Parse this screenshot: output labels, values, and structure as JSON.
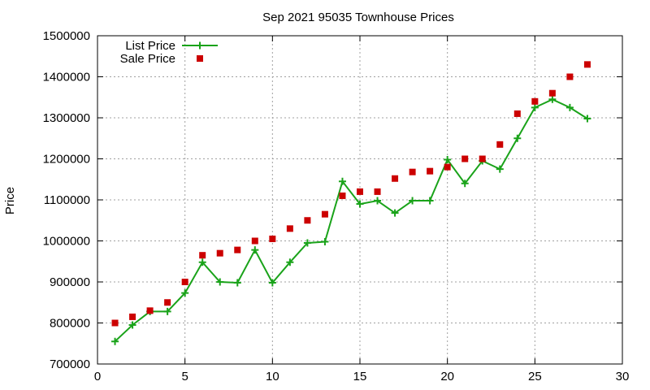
{
  "chart_data": {
    "type": "line",
    "title": "Sep 2021 95035 Townhouse Prices",
    "xlabel": "",
    "ylabel": "Price",
    "xlim": [
      0,
      30
    ],
    "ylim": [
      700000,
      1500000
    ],
    "xticks": [
      0,
      5,
      10,
      15,
      20,
      25,
      30
    ],
    "yticks": [
      700000,
      800000,
      900000,
      1000000,
      1100000,
      1200000,
      1300000,
      1400000,
      1500000
    ],
    "grid": true,
    "legend_position": "top-left",
    "series": [
      {
        "name": "List Price",
        "style": "line-with-plus-markers",
        "color": "#1aa31a",
        "x": [
          1,
          2,
          3,
          4,
          5,
          6,
          7,
          8,
          9,
          10,
          11,
          12,
          13,
          14,
          15,
          16,
          17,
          18,
          19,
          20,
          21,
          22,
          23,
          24,
          25,
          26,
          27,
          28
        ],
        "values": [
          755000,
          795000,
          828000,
          828000,
          873000,
          948000,
          900000,
          898000,
          978000,
          898000,
          948000,
          995000,
          998000,
          1145000,
          1090000,
          1098000,
          1068000,
          1098000,
          1098000,
          1198000,
          1140000,
          1195000,
          1175000,
          1250000,
          1325000,
          1345000,
          1325000,
          1298000
        ]
      },
      {
        "name": "Sale Price",
        "style": "square-markers",
        "color": "#cc0000",
        "x": [
          1,
          2,
          3,
          4,
          5,
          6,
          7,
          8,
          9,
          10,
          11,
          12,
          13,
          14,
          15,
          16,
          17,
          18,
          19,
          20,
          21,
          22,
          23,
          24,
          25,
          26,
          27,
          28
        ],
        "values": [
          800000,
          815000,
          830000,
          850000,
          900000,
          965000,
          970000,
          978000,
          1000000,
          1005000,
          1030000,
          1050000,
          1065000,
          1110000,
          1120000,
          1120000,
          1152000,
          1168000,
          1170000,
          1180000,
          1200000,
          1200000,
          1235000,
          1310000,
          1340000,
          1360000,
          1400000,
          1430000
        ]
      }
    ]
  }
}
